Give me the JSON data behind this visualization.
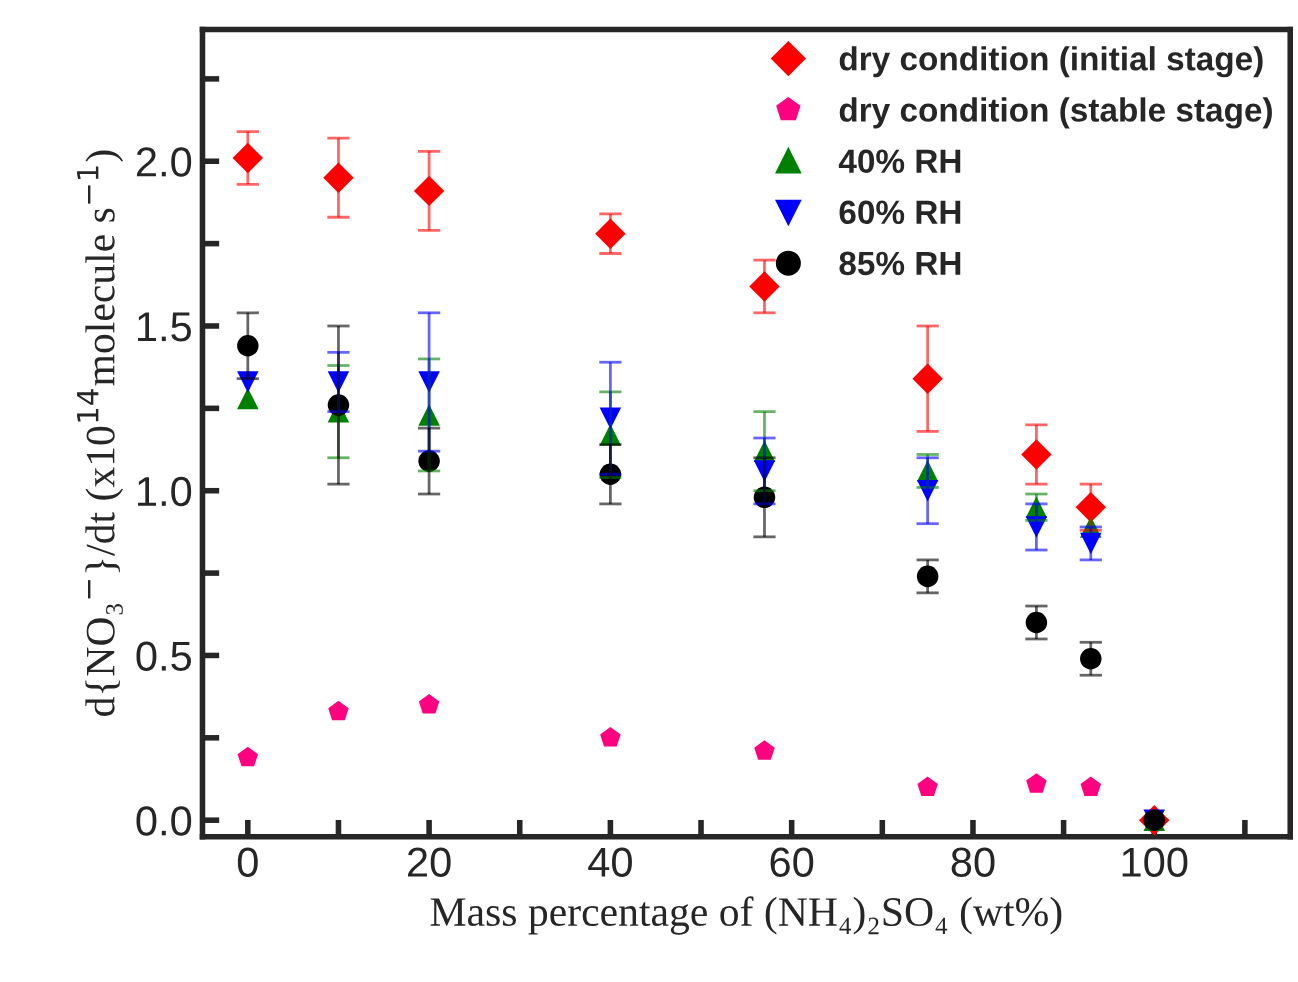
{
  "chart_data": {
    "type": "scatter",
    "xlabel": "Mass percentage of (NH₄)₂SO₄ (wt%)",
    "ylabel": "d{NO₃$^{−}$}/dt (x10$^{14}$molecule s$^{−1}$)",
    "x": [
      0,
      10,
      20,
      40,
      57,
      75,
      87,
      93,
      100
    ],
    "series": [
      {
        "name": "dry condition (initial stage)",
        "color": "#ff0000",
        "marker": "diamond",
        "values": [
          2.01,
          1.95,
          1.91,
          1.78,
          1.62,
          1.34,
          1.11,
          0.95,
          0
        ],
        "errors": [
          0.08,
          0.12,
          0.12,
          0.06,
          0.08,
          0.16,
          0.09,
          0.07,
          null
        ]
      },
      {
        "name": "dry condition (stable stage)",
        "color": "#ff0080",
        "values": [
          0.19,
          0.33,
          0.35,
          0.25,
          0.21,
          0.1,
          0.11,
          0.1,
          null
        ]
      },
      {
        "name": "40% RH",
        "color": "#008000",
        "marker": "triangle",
        "values": [
          1.28,
          1.24,
          1.23,
          1.17,
          1.12,
          1.06,
          0.95,
          0.89,
          0
        ],
        "errors": [
          null,
          0.14,
          0.17,
          0.13,
          0.12,
          0.05,
          0.04,
          null,
          null
        ]
      },
      {
        "name": "60% RH",
        "color": "#0000ff",
        "marker": "triangle_down",
        "values": [
          1.33,
          1.33,
          1.33,
          1.22,
          1.06,
          1.0,
          0.89,
          0.84,
          0
        ],
        "errors": [
          null,
          0.09,
          0.21,
          0.17,
          0.1,
          0.1,
          0.07,
          0.05,
          null
        ]
      },
      {
        "name": "85% RH",
        "color": "#000000",
        "marker": "circle",
        "values": [
          1.44,
          1.26,
          1.09,
          1.05,
          0.98,
          0.74,
          0.6,
          0.49,
          0
        ],
        "errors": [
          0.1,
          0.24,
          0.1,
          0.09,
          0.12,
          0.05,
          0.05,
          0.05,
          null
        ]
      }
    ],
    "xlim": [
      -5,
      115
    ],
    "xticks": [
      0,
      {
        "value": 10,
        "label": null
      },
      20,
      {
        "value": 30,
        "label": null
      },
      40,
      {
        "value": 50,
        "label": null
      },
      60,
      {
        "value": 70,
        "label": null
      },
      80,
      {
        "value": 90,
        "label": null
      },
      100,
      {
        "value": 110,
        "label": null
      }
    ],
    "ylim": [
      -0.05,
      2.4
    ],
    "yticks": [
      {
        "value": 0,
        "label": "0.0"
      },
      {
        "value": 0.25,
        "label": null
      },
      0.5,
      {
        "value": 0.75,
        "label": null
      },
      {
        "value": 1,
        "label": "1.0"
      },
      {
        "value": 1.25,
        "label": null
      },
      1.5,
      {
        "value": 1.75,
        "label": null
      },
      {
        "value": 2,
        "label": "2.0"
      },
      {
        "value": 2.25,
        "label": null
      }
    ],
    "legend": "top right",
    "grid": false
  }
}
